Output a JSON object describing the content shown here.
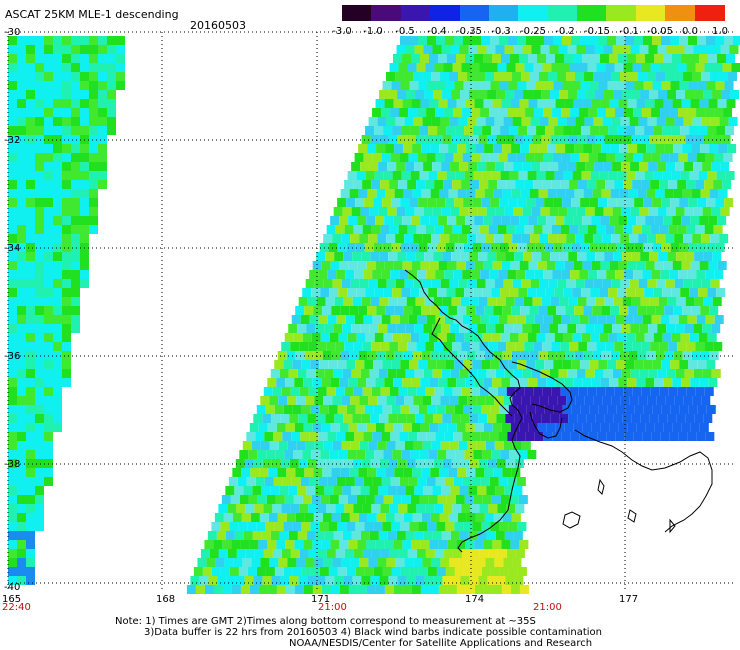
{
  "header": {
    "title": "ASCAT 25KM MLE-1 descending",
    "date": "20160503"
  },
  "colorbar": {
    "labels": [
      "-3.0",
      "-1.0",
      "-0.5",
      "-0.4",
      "-0.35",
      "-0.3",
      "-0.25",
      "-0.2",
      "-0.15",
      "-0.1",
      "-0.05",
      "0.0",
      "1.0"
    ],
    "colors": [
      "#250025",
      "#4a0a7a",
      "#3a16b0",
      "#1022e6",
      "#1565f0",
      "#20b0f0",
      "#10f0f0",
      "#20f0b0",
      "#20e020",
      "#9ae820",
      "#e8e820",
      "#f09010",
      "#f02010"
    ]
  },
  "map": {
    "lat_labels": [
      "-30",
      "-32",
      "-34",
      "-36",
      "-38",
      "-40"
    ],
    "lon_labels": [
      "165",
      "168",
      "171",
      "174",
      "177"
    ],
    "time_labels": [
      "22:40",
      "21:00",
      "21:00"
    ]
  },
  "notes": {
    "line1": "Note: 1) Times are GMT 2)Times along bottom correspond to measurement at ~35S",
    "line2": "3)Data buffer is 22 hrs from 20160503 4) Black wind barbs indicate possible contamination",
    "line3": "NOAA/NESDIS/Center for Satellite Applications and Research"
  }
}
